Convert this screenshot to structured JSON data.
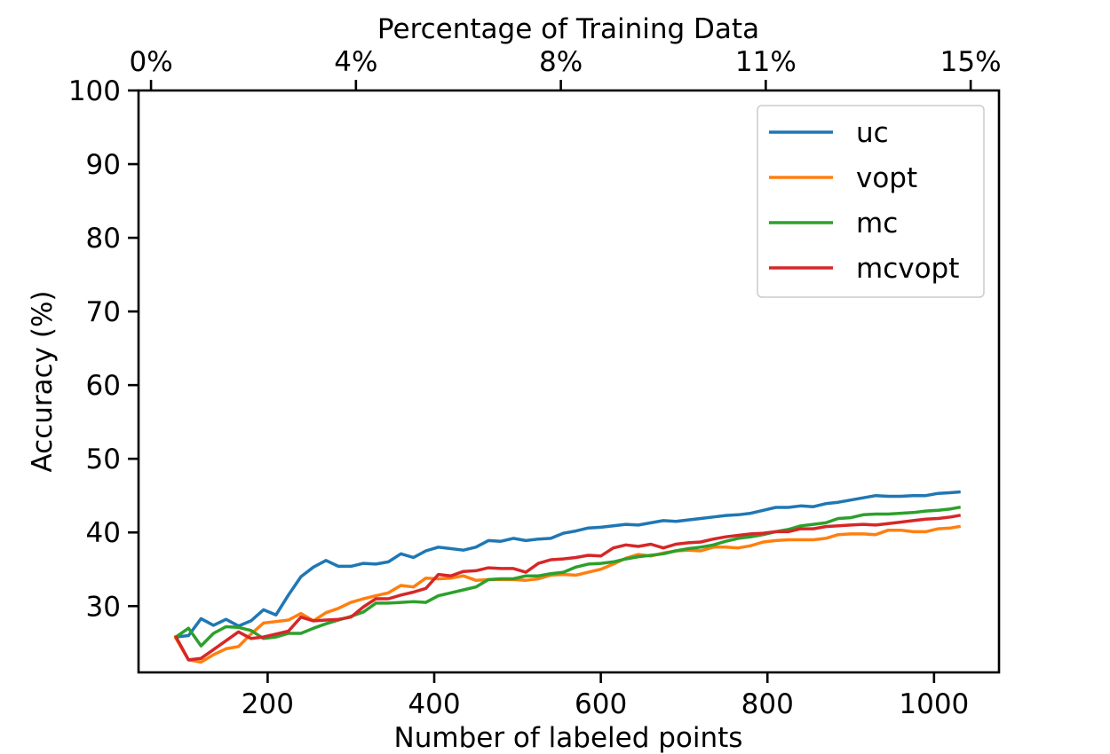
{
  "chart_data": {
    "type": "line",
    "xlabel": "Number of labeled points",
    "ylabel": "Accuracy (%)",
    "top_xlabel": "Percentage of Training Data",
    "xlim": [
      45,
      1078
    ],
    "ylim": [
      21,
      100
    ],
    "x_ticks": [
      200,
      400,
      600,
      800,
      1000
    ],
    "y_ticks": [
      30,
      40,
      50,
      60,
      70,
      80,
      90,
      100
    ],
    "top_ticks": [
      {
        "x": 60,
        "label": "0%"
      },
      {
        "x": 306,
        "label": "4%"
      },
      {
        "x": 552,
        "label": "8%"
      },
      {
        "x": 798,
        "label": "11%"
      },
      {
        "x": 1044,
        "label": "15%"
      }
    ],
    "grid": false,
    "legend_position": "top-right",
    "x": [
      90,
      105,
      120,
      135,
      150,
      165,
      180,
      195,
      210,
      225,
      240,
      255,
      270,
      285,
      300,
      315,
      330,
      345,
      360,
      375,
      390,
      405,
      420,
      435,
      450,
      465,
      480,
      495,
      510,
      525,
      540,
      555,
      570,
      585,
      600,
      615,
      630,
      645,
      660,
      675,
      690,
      705,
      720,
      735,
      750,
      765,
      780,
      795,
      810,
      825,
      840,
      855,
      870,
      885,
      900,
      915,
      930,
      945,
      960,
      975,
      990,
      1005,
      1020,
      1030
    ],
    "series": [
      {
        "name": "uc",
        "color": "#1f77b4",
        "values": [
          25.8,
          26,
          28.3,
          27.4,
          28.2,
          27.3,
          28,
          29.5,
          28.8,
          31.5,
          34,
          35.3,
          36.2,
          35.4,
          35.4,
          35.8,
          35.7,
          36,
          37.1,
          36.6,
          37.5,
          38,
          37.8,
          37.6,
          38,
          38.9,
          38.8,
          39.2,
          38.9,
          39.1,
          39.2,
          39.9,
          40.2,
          40.6,
          40.7,
          40.9,
          41.1,
          41,
          41.3,
          41.6,
          41.5,
          41.7,
          41.9,
          42.1,
          42.3,
          42.4,
          42.6,
          43,
          43.4,
          43.4,
          43.6,
          43.5,
          43.9,
          44.1,
          44.4,
          44.7,
          45,
          44.9,
          44.9,
          45,
          45,
          45.3,
          45.4,
          45.5
        ]
      },
      {
        "name": "vopt",
        "color": "#ff7f0e",
        "values": [
          25.6,
          22.7,
          22.4,
          23.4,
          24.2,
          24.5,
          26.2,
          27.7,
          27.9,
          28.1,
          29,
          28,
          29.1,
          29.7,
          30.5,
          31,
          31.4,
          31.8,
          32.8,
          32.6,
          33.8,
          33.7,
          33.8,
          34.1,
          33.5,
          33.6,
          33.6,
          33.6,
          33.5,
          33.7,
          34.2,
          34.3,
          34.2,
          34.6,
          35,
          35.7,
          36.5,
          37,
          36.8,
          37.2,
          37.5,
          37.6,
          37.5,
          38,
          38,
          37.9,
          38.2,
          38.7,
          38.9,
          39,
          39,
          39,
          39.2,
          39.7,
          39.8,
          39.8,
          39.7,
          40.3,
          40.3,
          40.1,
          40.1,
          40.5,
          40.6,
          40.8
        ]
      },
      {
        "name": "mc",
        "color": "#2ca02c",
        "values": [
          25.8,
          27,
          24.6,
          26.3,
          27.2,
          27.1,
          26.7,
          25.6,
          25.8,
          26.3,
          26.3,
          27,
          27.6,
          28.1,
          28.6,
          29.2,
          30.4,
          30.4,
          30.5,
          30.6,
          30.5,
          31.4,
          31.8,
          32.2,
          32.6,
          33.6,
          33.7,
          33.7,
          34.1,
          34.1,
          34.4,
          34.6,
          35.3,
          35.7,
          35.8,
          36,
          36.4,
          36.7,
          36.9,
          37.1,
          37.5,
          37.8,
          38,
          38.3,
          38.8,
          39.2,
          39.4,
          39.7,
          40.1,
          40.4,
          40.9,
          41.1,
          41.3,
          41.9,
          42,
          42.4,
          42.5,
          42.5,
          42.6,
          42.7,
          42.9,
          43,
          43.2,
          43.4
        ]
      },
      {
        "name": "mcvopt",
        "color": "#d62728",
        "values": [
          25.8,
          22.7,
          22.9,
          24.1,
          25.3,
          26.5,
          25.6,
          25.8,
          26.2,
          26.6,
          28.5,
          28,
          28.1,
          28.2,
          28.5,
          29.9,
          31,
          31,
          31.5,
          31.9,
          32.4,
          34.3,
          34.1,
          34.7,
          34.8,
          35.2,
          35.1,
          35.1,
          34.6,
          35.8,
          36.3,
          36.4,
          36.6,
          36.9,
          36.8,
          37.9,
          38.3,
          38.1,
          38.4,
          37.9,
          38.4,
          38.6,
          38.7,
          39.1,
          39.4,
          39.6,
          39.8,
          39.9,
          40.1,
          40.1,
          40.5,
          40.5,
          40.8,
          40.9,
          41,
          41.1,
          41,
          41.2,
          41.4,
          41.6,
          41.8,
          41.9,
          42.1,
          42.3
        ]
      }
    ]
  }
}
